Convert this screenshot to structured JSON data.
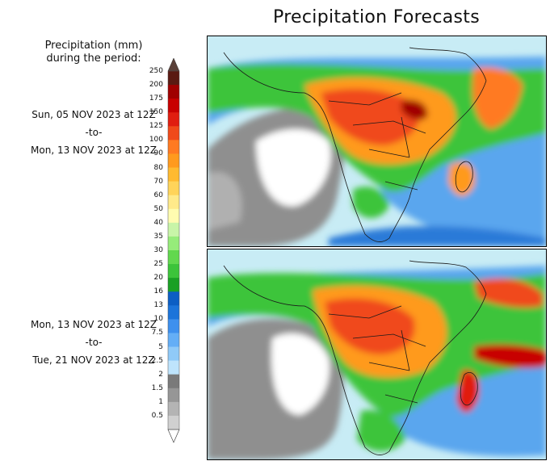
{
  "title": "Precipitation Forecasts",
  "legend": {
    "heading_line1": "Precipitation (mm)",
    "heading_line2": "during the period:",
    "units": "mm",
    "levels": [
      "250",
      "200",
      "175",
      "150",
      "125",
      "100",
      "90",
      "80",
      "70",
      "60",
      "50",
      "40",
      "35",
      "30",
      "25",
      "20",
      "16",
      "13",
      "10",
      "7.5",
      "5",
      "2.5",
      "2",
      "1.5",
      "1",
      "0.5"
    ],
    "colors": [
      "#5a1a12",
      "#a00000",
      "#c80000",
      "#e01e10",
      "#f04a1a",
      "#ff7a22",
      "#ff9a1e",
      "#ffba30",
      "#ffd45a",
      "#ffea8a",
      "#fffcb0",
      "#c8f5a8",
      "#96ec7a",
      "#62d84e",
      "#3cc43a",
      "#1aa024",
      "#0c5ec4",
      "#1c74da",
      "#3e90ee",
      "#64aef6",
      "#90caf8",
      "#bee4fc",
      "#7a7a7a",
      "#969696",
      "#b4b4b4",
      "#d0d0d0"
    ],
    "over_color": "#5a4038",
    "under_color": "#ffffff"
  },
  "periods": [
    {
      "start": "Sun, 05 NOV 2023 at 12Z",
      "sep": "-to-",
      "end": "Mon, 13 NOV 2023 at 12Z"
    },
    {
      "start": "Mon, 13 NOV 2023 at 12Z",
      "sep": "-to-",
      "end": "Tue, 21 NOV 2023 at 12Z"
    }
  ]
}
